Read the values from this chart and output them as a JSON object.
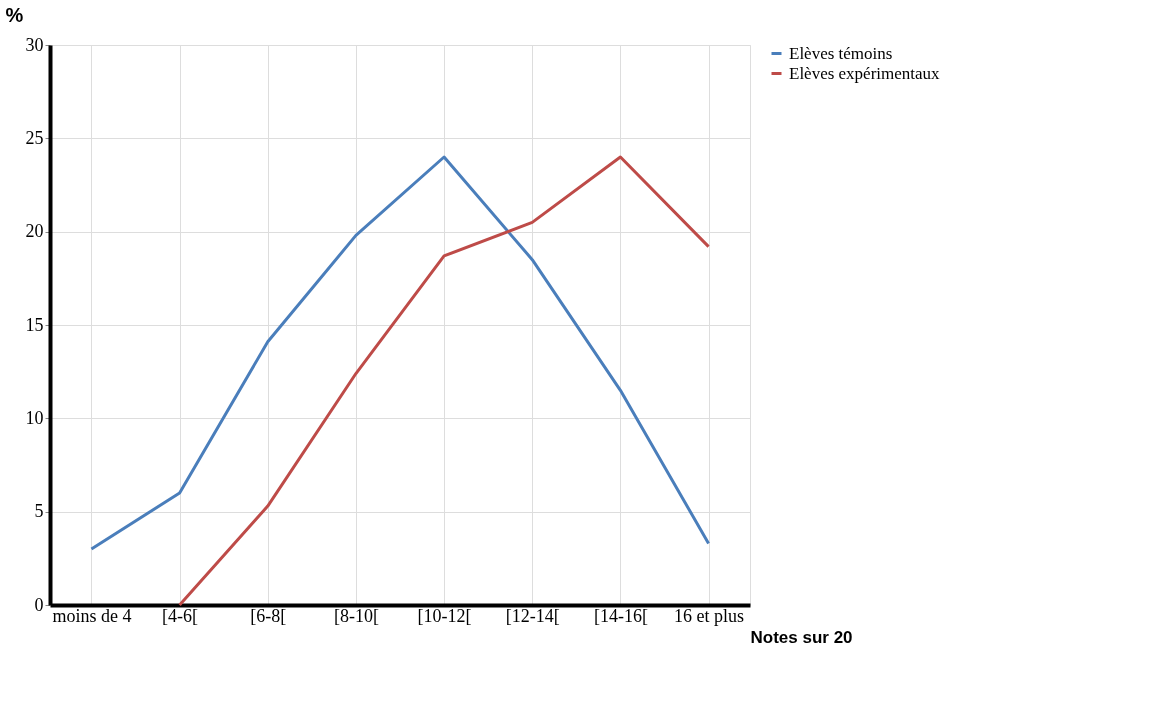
{
  "chart_data": {
    "type": "line",
    "xlabel": "Notes sur 20",
    "ylabel": "%",
    "categories": [
      "moins de 4",
      "[4-6[",
      "[6-8[",
      "[8-10[",
      "[10-12[",
      "[12-14[",
      "[14-16[",
      "16 et plus"
    ],
    "series": [
      {
        "name": "Elèves témoins",
        "color": "#4a7ebb",
        "values": [
          3,
          6,
          14.1,
          19.8,
          24,
          18.5,
          11.5,
          3.3
        ]
      },
      {
        "name": "Elèves  expérimentaux",
        "color": "#be4b48",
        "values": [
          null,
          0,
          5.3,
          12.4,
          18.7,
          20.5,
          24,
          19.2
        ]
      }
    ],
    "ylim": [
      0,
      30
    ],
    "yticks": [
      0,
      5,
      10,
      15,
      20,
      25,
      30
    ],
    "grid": true,
    "legend": "right",
    "marker": "none",
    "line_style": "solid"
  }
}
